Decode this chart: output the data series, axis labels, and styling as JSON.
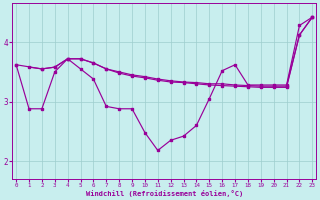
{
  "xlabel": "Windchill (Refroidissement éolien,°C)",
  "bg_color": "#c8eeee",
  "line_color": "#990099",
  "grid_color": "#9ecece",
  "x_ticks": [
    0,
    1,
    2,
    3,
    4,
    5,
    6,
    7,
    8,
    9,
    10,
    11,
    12,
    13,
    14,
    15,
    16,
    17,
    18,
    19,
    20,
    21,
    22,
    23
  ],
  "y_ticks": [
    2,
    3,
    4
  ],
  "ylim": [
    1.7,
    4.65
  ],
  "xlim": [
    -0.3,
    23.3
  ],
  "line1_x": [
    0,
    1,
    2,
    3,
    4,
    5,
    6,
    7,
    8,
    9,
    10,
    11,
    12,
    13,
    14,
    15,
    16,
    17,
    18,
    19,
    20,
    21,
    22,
    23
  ],
  "line1_y": [
    3.62,
    2.88,
    2.88,
    3.5,
    3.72,
    3.55,
    3.38,
    2.92,
    2.88,
    2.88,
    2.48,
    2.18,
    2.35,
    2.42,
    2.6,
    3.05,
    3.52,
    3.62,
    3.28,
    3.28,
    3.28,
    3.28,
    4.28,
    4.42
  ],
  "line2_x": [
    0,
    2,
    3,
    4,
    5,
    6,
    7,
    8,
    9,
    10,
    11,
    12,
    13,
    14,
    15,
    16,
    17,
    18,
    19,
    20,
    21,
    22,
    23
  ],
  "line2_y": [
    3.62,
    3.55,
    3.58,
    3.72,
    3.72,
    3.65,
    3.55,
    3.5,
    3.45,
    3.42,
    3.38,
    3.35,
    3.33,
    3.32,
    3.3,
    3.3,
    3.28,
    3.27,
    3.26,
    3.26,
    3.26,
    4.12,
    4.42
  ],
  "line3_x": [
    1,
    2,
    3,
    4,
    5,
    6,
    7,
    8,
    9,
    10,
    11,
    12,
    13,
    14,
    15,
    16,
    17,
    18,
    19,
    20,
    21,
    22,
    23
  ],
  "line3_y": [
    3.58,
    3.55,
    3.58,
    3.72,
    3.72,
    3.65,
    3.55,
    3.48,
    3.43,
    3.4,
    3.36,
    3.33,
    3.32,
    3.3,
    3.28,
    3.27,
    3.26,
    3.25,
    3.24,
    3.24,
    3.24,
    4.12,
    4.42
  ]
}
